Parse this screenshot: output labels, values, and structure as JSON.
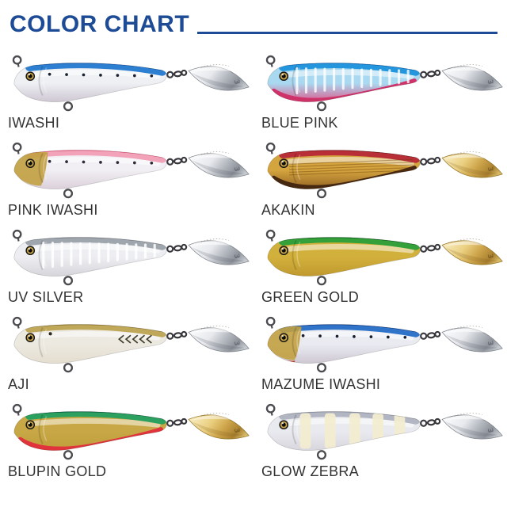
{
  "header": {
    "title": "COLOR CHART",
    "accent_color": "#1d4b95"
  },
  "blade_mark": "3",
  "label_color": "#333333",
  "lures": [
    {
      "name": "IWASHI",
      "blade": "silver",
      "pattern": "dots",
      "pattern_color": "#1b2232",
      "colors": {
        "back": "#2d7fd2",
        "back_dark": "#0f55a8",
        "base": "#eef0f4",
        "belly": "#c9c0cd"
      }
    },
    {
      "name": "BLUE PINK",
      "blade": "silver",
      "pattern": "ribs",
      "pattern_color": "rgba(255,255,255,0.8)",
      "colors": {
        "back": "#2496dd",
        "back_dark": "#0b67bb",
        "base": "#a9d9f0",
        "belly": "#e24a80",
        "belly_band": "#cf3169"
      }
    },
    {
      "name": "PINK IWASHI",
      "blade": "silver",
      "pattern": "dots",
      "pattern_color": "#2e2838",
      "colors": {
        "back": "#f2a3ba",
        "back_dark": "#e84a6e",
        "base": "#f1eff3",
        "belly": "#d8cbd7",
        "head": "#c2a040"
      }
    },
    {
      "name": "AKAKIN",
      "blade": "gold",
      "pattern": "hstripes",
      "pattern_color": "rgba(105,60,5,0.4)",
      "colors": {
        "back": "#b92f38",
        "back_dark": "#7c1c22",
        "base": "#d4a43e",
        "belly": "#8a5a22",
        "belly_band": "#46270f"
      }
    },
    {
      "name": "UV SILVER",
      "blade": "silver",
      "pattern": "ribs",
      "pattern_color": "rgba(255,255,255,0.85)",
      "colors": {
        "back": "#a0a6ae",
        "back_dark": "#7b818a",
        "base": "#edeef2",
        "belly": "#d3d1d7"
      }
    },
    {
      "name": "GREEN GOLD",
      "blade": "gold",
      "pattern": "none",
      "pattern_color": "",
      "colors": {
        "back": "#33a03a",
        "back_dark": "#0e5a20",
        "base": "#d2b03c",
        "belly": "#bd962c"
      }
    },
    {
      "name": "AJI",
      "blade": "silver",
      "pattern": "chevrons",
      "pattern_color": "#3e3a28",
      "spot": true,
      "colors": {
        "back": "#bfa85a",
        "back_dark": "#93772e",
        "base": "#ece9e0",
        "belly": "#e3dccd"
      }
    },
    {
      "name": "MAZUME IWASHI",
      "blade": "silver",
      "pattern": "dots",
      "pattern_color": "#182030",
      "colors": {
        "back": "#2f74c9",
        "back_dark": "#133f8f",
        "base": "#e9ebf1",
        "belly": "#cac2ce",
        "head": "#c2a040",
        "chin": "#c8432c"
      }
    },
    {
      "name": "BLUPIN GOLD",
      "blade": "gold",
      "pattern": "none",
      "pattern_color": "",
      "colors": {
        "back": "#2ba05f",
        "back_dark": "#0a5f46",
        "base": "#c8a846",
        "belly": "#bd9c38",
        "belly_band": "#e0333c"
      }
    },
    {
      "name": "GLOW ZEBRA",
      "blade": "silver",
      "pattern": "glow",
      "pattern_color": "#f2ecd0",
      "colors": {
        "back": "#b2b6c2",
        "back_dark": "#8d92a0",
        "base": "#e9eaef",
        "belly": "#d5d3db"
      }
    }
  ]
}
